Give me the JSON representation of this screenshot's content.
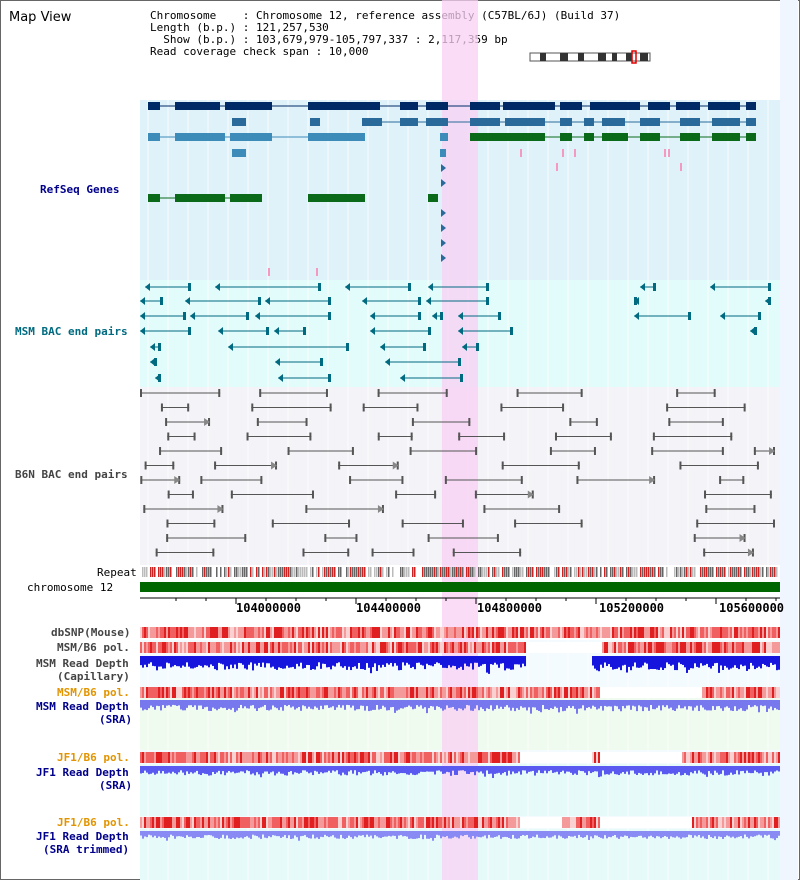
{
  "page": {
    "title": "Map View"
  },
  "info": {
    "line1": "Chromosome    : Chromosome 12, reference assembly (C57BL/6J) (Build 37)",
    "line2": "Length (b.p.) : 121,257,530",
    "line3": "  Show (b.p.) : 103,679,979-105,797,337 : 2,117,359 bp",
    "line4": "Read coverage check span : 10,000"
  },
  "tracks": {
    "refseq": "RefSeq Genes",
    "msm_bac": "MSM BAC end pairs",
    "b6n_bac": "B6N BAC end pairs",
    "repeat": "Repeat",
    "chromosome": "chromosome 12",
    "dbsnp": "dbSNP(Mouse)",
    "msm_b6_pol": "MSM/B6 pol.",
    "msm_depth_cap_1": "MSM Read Depth",
    "msm_depth_cap_2": "(Capillary)",
    "msm_b6_pol2": "MSM/B6 pol.",
    "msm_depth_sra_1": "MSM Read Depth",
    "msm_depth_sra_2": "(SRA)",
    "jf1_b6_pol": "JF1/B6 pol.",
    "jf1_depth_1": "JF1 Read Depth",
    "jf1_depth_2": "(SRA)",
    "jf1_b6_pol2": "JF1/B6 pol.",
    "jf1_trim_1": "JF1 Read Depth",
    "jf1_trim_2": "(SRA trimmed)"
  },
  "axis": {
    "ticks": [
      "104000000",
      "104400000",
      "104800000",
      "105200000",
      "105600000"
    ]
  },
  "colors": {
    "refseq_bg": "#dff2fa",
    "msm_bg": "#e2fbfb",
    "b6n_bg": "#f4f4f8",
    "highlight": "#f8d0f4",
    "chromosome": "#006600",
    "label_blue": "#00008b",
    "label_teal": "#006a80",
    "label_gray": "#444444",
    "label_orange": "#e29400"
  }
}
